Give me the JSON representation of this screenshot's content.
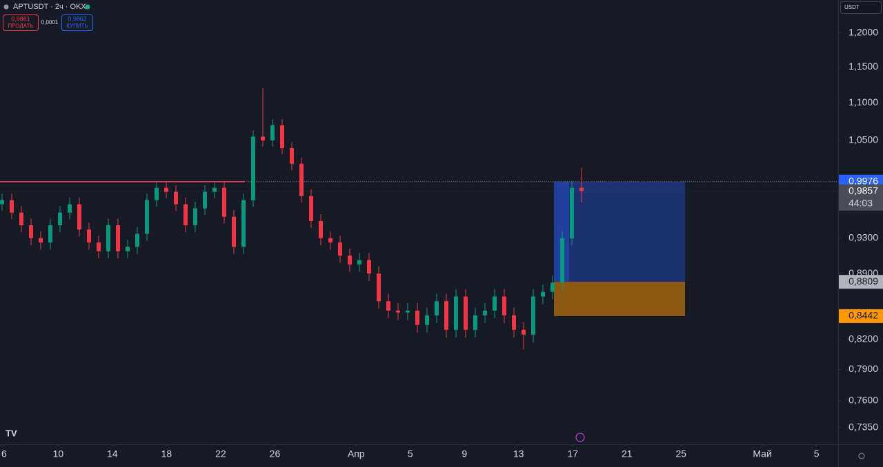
{
  "header": {
    "symbol": "APTUSDT · 2ч · OKX",
    "sell_price": "0,9861",
    "sell_label": "ПРОДАТЬ",
    "spread": "0,0001",
    "buy_price": "0,9862",
    "buy_label": "КУПИТЬ",
    "currency": "USDT"
  },
  "chart_data": {
    "type": "candlestick",
    "log_scale": true,
    "ylim": [
      0.72,
      1.25
    ],
    "yticks": [
      {
        "value": 1.2,
        "label": "1,2000"
      },
      {
        "value": 1.15,
        "label": "1,1500"
      },
      {
        "value": 1.1,
        "label": "1,1000"
      },
      {
        "value": 1.05,
        "label": "1,0500"
      },
      {
        "value": 0.93,
        "label": "0,9300"
      },
      {
        "value": 0.89,
        "label": "0,8900"
      },
      {
        "value": 0.82,
        "label": "0,8200"
      },
      {
        "value": 0.79,
        "label": "0,7900"
      },
      {
        "value": 0.76,
        "label": "0,7600"
      },
      {
        "value": 0.735,
        "label": "0,7350"
      }
    ],
    "xlim": [
      -0.3,
      61.6
    ],
    "xticks": [
      {
        "value": 0,
        "label": "6"
      },
      {
        "value": 4,
        "label": "10"
      },
      {
        "value": 8,
        "label": "14"
      },
      {
        "value": 12,
        "label": "18"
      },
      {
        "value": 16,
        "label": "22"
      },
      {
        "value": 20,
        "label": "26"
      },
      {
        "value": 26,
        "label": "Апр"
      },
      {
        "value": 30,
        "label": "5"
      },
      {
        "value": 34,
        "label": "9"
      },
      {
        "value": 38,
        "label": "13"
      },
      {
        "value": 42,
        "label": "17"
      },
      {
        "value": 46,
        "label": "21"
      },
      {
        "value": 50,
        "label": "25"
      },
      {
        "value": 56,
        "label": "Май"
      },
      {
        "value": 60,
        "label": "5"
      }
    ],
    "up_color": "#089981",
    "down_color": "#f23645",
    "open": [
      0.97,
      0.975,
      0.96,
      0.945,
      0.93,
      0.925,
      0.945,
      0.96,
      0.97,
      0.94,
      0.925,
      0.915,
      0.945,
      0.915,
      0.92,
      0.935,
      0.975,
      0.99,
      0.985,
      0.97,
      0.945,
      0.965,
      0.985,
      0.99,
      0.955,
      0.92,
      0.975,
      1.055,
      1.05,
      1.07,
      1.04,
      1.02,
      0.98,
      0.95,
      0.93,
      0.925,
      0.91,
      0.9,
      0.905,
      0.89,
      0.86,
      0.85,
      0.848,
      0.85,
      0.835,
      0.845,
      0.86,
      0.83,
      0.865,
      0.83,
      0.845,
      0.85,
      0.865,
      0.845,
      0.83,
      0.825,
      0.865,
      0.87,
      0.88,
      0.93,
      0.99
    ],
    "high": [
      0.983,
      0.983,
      0.968,
      0.953,
      0.938,
      0.953,
      0.968,
      0.978,
      0.978,
      0.948,
      0.933,
      0.953,
      0.953,
      0.928,
      0.943,
      0.983,
      0.998,
      0.998,
      0.993,
      0.978,
      0.973,
      0.993,
      0.998,
      0.998,
      0.963,
      0.983,
      1.063,
      1.12,
      1.078,
      1.078,
      1.048,
      1.028,
      0.988,
      0.958,
      0.938,
      0.933,
      0.918,
      0.913,
      0.913,
      0.898,
      0.868,
      0.858,
      0.858,
      0.858,
      0.853,
      0.868,
      0.868,
      0.873,
      0.873,
      0.853,
      0.858,
      0.873,
      0.873,
      0.853,
      0.838,
      0.873,
      0.878,
      0.888,
      0.938,
      0.998,
      1.015
    ],
    "low": [
      0.962,
      0.952,
      0.937,
      0.922,
      0.917,
      0.917,
      0.937,
      0.952,
      0.932,
      0.917,
      0.907,
      0.907,
      0.907,
      0.907,
      0.912,
      0.927,
      0.967,
      0.977,
      0.962,
      0.937,
      0.937,
      0.957,
      0.977,
      0.947,
      0.912,
      0.912,
      0.967,
      1.042,
      1.042,
      1.032,
      1.012,
      0.972,
      0.942,
      0.922,
      0.917,
      0.902,
      0.892,
      0.892,
      0.882,
      0.852,
      0.842,
      0.84,
      0.84,
      0.827,
      0.827,
      0.837,
      0.822,
      0.822,
      0.822,
      0.822,
      0.837,
      0.842,
      0.837,
      0.822,
      0.81,
      0.817,
      0.857,
      0.862,
      0.872,
      0.922,
      0.972
    ],
    "close": [
      0.975,
      0.96,
      0.945,
      0.93,
      0.925,
      0.945,
      0.96,
      0.97,
      0.94,
      0.925,
      0.915,
      0.945,
      0.915,
      0.92,
      0.935,
      0.975,
      0.99,
      0.985,
      0.97,
      0.945,
      0.965,
      0.985,
      0.99,
      0.955,
      0.92,
      0.975,
      1.055,
      1.05,
      1.07,
      1.04,
      1.02,
      0.98,
      0.95,
      0.93,
      0.925,
      0.91,
      0.9,
      0.905,
      0.89,
      0.86,
      0.85,
      0.848,
      0.85,
      0.835,
      0.845,
      0.86,
      0.83,
      0.865,
      0.83,
      0.845,
      0.85,
      0.865,
      0.845,
      0.83,
      0.825,
      0.865,
      0.87,
      0.88,
      0.93,
      0.99,
      0.986
    ],
    "last_price": {
      "value": 0.9857,
      "label": "0,9857"
    },
    "countdown": "44:03",
    "position": {
      "target": {
        "value": 0.9976,
        "label": "0,9976"
      },
      "entry": {
        "value": 0.8809,
        "label": "0,8809"
      },
      "stop": {
        "value": 0.8442,
        "label": "0,8442"
      }
    }
  }
}
